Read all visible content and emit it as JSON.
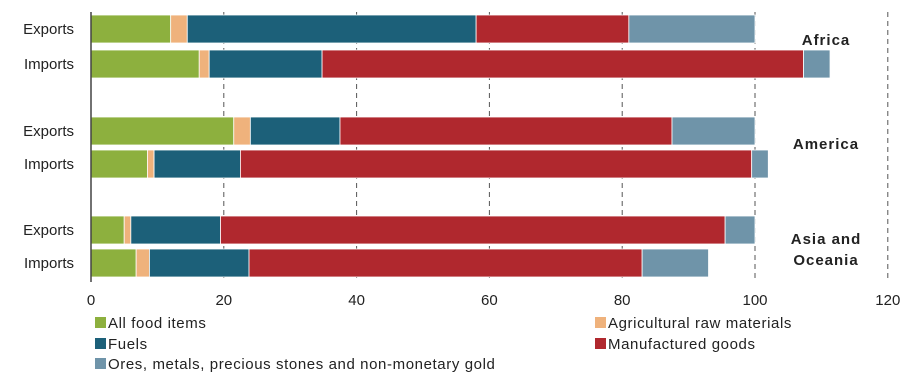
{
  "chart_data": {
    "type": "bar",
    "orientation": "horizontal",
    "stacked": true,
    "xlim": [
      0,
      120
    ],
    "xticks": [
      0,
      20,
      40,
      60,
      80,
      100,
      120
    ],
    "grid": "vertical dashed at tick values",
    "groups": [
      "Africa",
      "America",
      "Asia and Oceania"
    ],
    "rows": [
      {
        "group": "Africa",
        "label": "Exports"
      },
      {
        "group": "Africa",
        "label": "Imports"
      },
      {
        "group": "America",
        "label": "Exports"
      },
      {
        "group": "America",
        "label": "Imports"
      },
      {
        "group": "Asia and Oceania",
        "label": "Exports"
      },
      {
        "group": "Asia and Oceania",
        "label": "Imports"
      }
    ],
    "series": [
      {
        "name": "All food items",
        "color": "#8db03e",
        "values": [
          12,
          16.3,
          21.5,
          8.5,
          5,
          6.8
        ]
      },
      {
        "name": "Agricultural raw materials",
        "color": "#efb27c",
        "values": [
          2.5,
          1.5,
          2.5,
          1,
          1,
          2
        ]
      },
      {
        "name": "Fuels",
        "color": "#1c6079",
        "values": [
          43.5,
          17,
          13.5,
          13,
          13.5,
          15
        ]
      },
      {
        "name": "Manufactured goods",
        "color": "#b0282e",
        "values": [
          23,
          72.5,
          50,
          77,
          76,
          59.2
        ]
      },
      {
        "name": "Ores, metals, precious stones and non-monetary gold",
        "color": "#6f94a9",
        "values": [
          19,
          4,
          12.5,
          2.5,
          4.5,
          10
        ]
      }
    ],
    "legend_position": "bottom"
  },
  "group_labels": [
    {
      "lines": [
        "Africa"
      ]
    },
    {
      "lines": [
        "America"
      ]
    },
    {
      "lines": [
        "Asia and",
        "Oceania"
      ]
    }
  ]
}
